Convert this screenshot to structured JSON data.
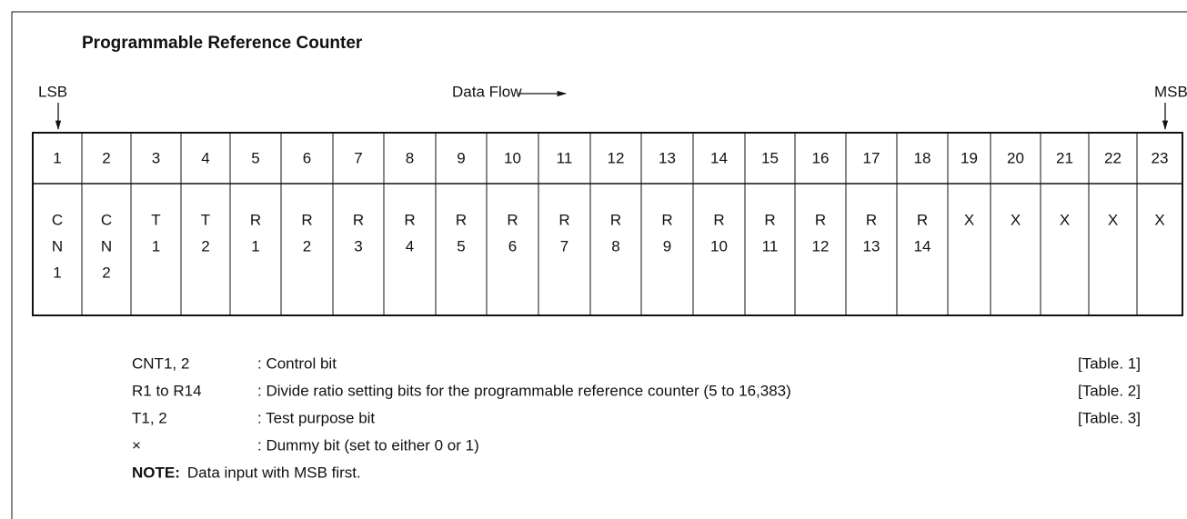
{
  "header": {
    "title": "Programmable Reference Counter"
  },
  "labels": {
    "lsb": "LSB",
    "msb": "MSB",
    "data_flow": "Data Flow"
  },
  "table": {
    "bits": [
      1,
      2,
      3,
      4,
      5,
      6,
      7,
      8,
      9,
      10,
      11,
      12,
      13,
      14,
      15,
      16,
      17,
      18,
      19,
      20,
      21,
      22,
      23
    ],
    "fields": [
      [
        "C",
        "N",
        "1"
      ],
      [
        "C",
        "N",
        "2"
      ],
      [
        "T",
        "1"
      ],
      [
        "T",
        "2"
      ],
      [
        "R",
        "1"
      ],
      [
        "R",
        "2"
      ],
      [
        "R",
        "3"
      ],
      [
        "R",
        "4"
      ],
      [
        "R",
        "5"
      ],
      [
        "R",
        "6"
      ],
      [
        "R",
        "7"
      ],
      [
        "R",
        "8"
      ],
      [
        "R",
        "9"
      ],
      [
        "R",
        "10"
      ],
      [
        "R",
        "11"
      ],
      [
        "R",
        "12"
      ],
      [
        "R",
        "13"
      ],
      [
        "R",
        "14"
      ],
      [
        "X"
      ],
      [
        "X"
      ],
      [
        "X"
      ],
      [
        "X"
      ],
      [
        "X"
      ]
    ]
  },
  "legend": [
    {
      "term": "CNT1, 2",
      "description": ": Control bit",
      "ref": "[Table. 1]"
    },
    {
      "term": "R1 to R14",
      "description": ": Divide ratio setting bits for the programmable reference counter (5 to 16,383)",
      "ref": "[Table. 2]"
    },
    {
      "term": "T1, 2",
      "description": ": Test purpose bit",
      "ref": "[Table. 3]"
    },
    {
      "term": "×",
      "description": ": Dummy bit (set to either 0 or 1)"
    }
  ],
  "note": {
    "label": "NOTE:",
    "text": "Data input with MSB first."
  }
}
